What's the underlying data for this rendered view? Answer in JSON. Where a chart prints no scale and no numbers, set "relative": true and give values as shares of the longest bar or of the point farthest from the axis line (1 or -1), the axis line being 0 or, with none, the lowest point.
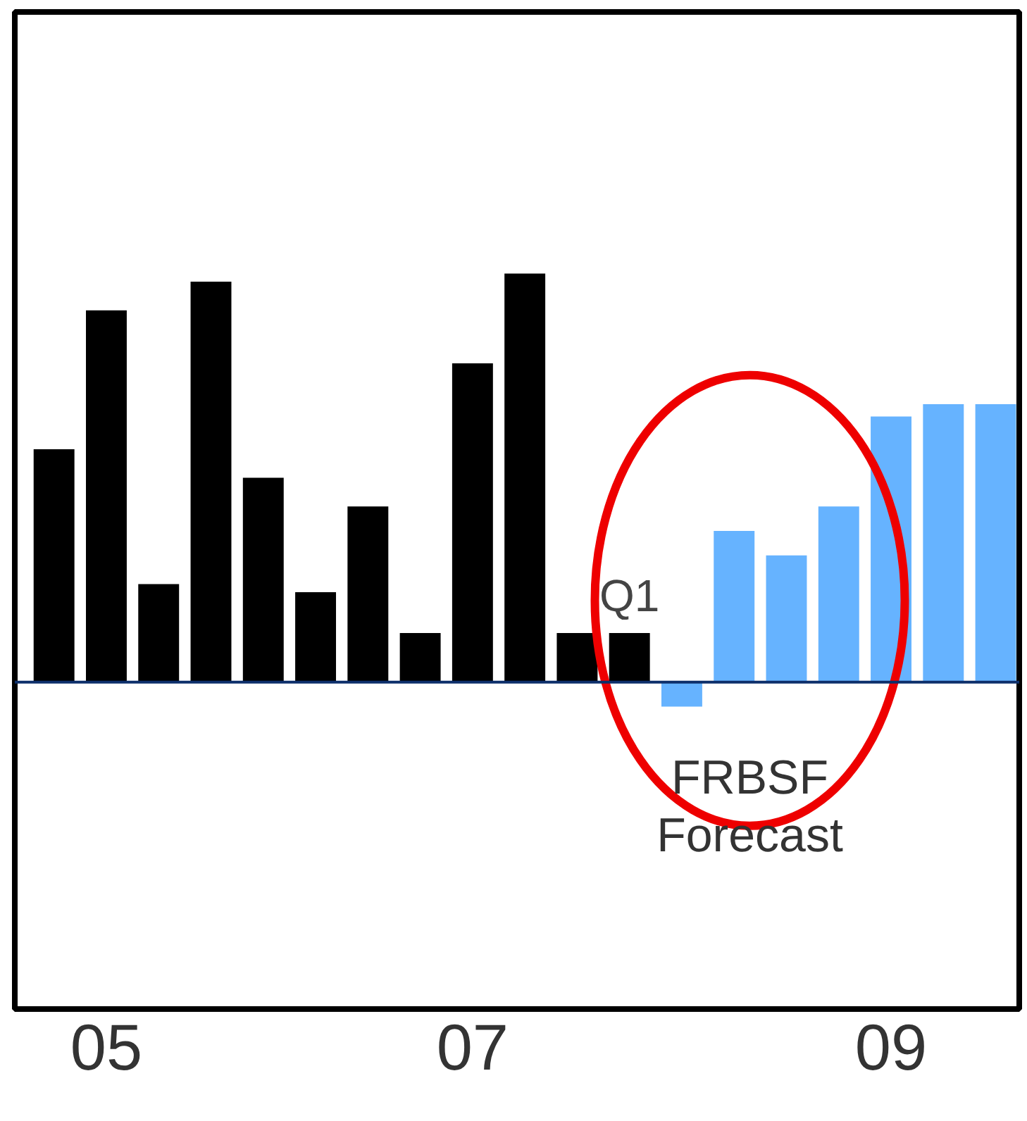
{
  "chart_data": {
    "type": "bar",
    "relative": true,
    "categories": [
      null,
      "05",
      null,
      null,
      null,
      null,
      null,
      null,
      "07",
      null,
      null,
      null,
      null,
      null,
      null,
      null,
      "09",
      null,
      null
    ],
    "values": [
      0.57,
      0.91,
      0.24,
      0.98,
      0.5,
      0.22,
      0.43,
      0.12,
      0.78,
      1,
      0.12,
      0.12,
      -0.06,
      0.37,
      0.31,
      0.43,
      0.65,
      0.68,
      0.68
    ],
    "colors": [
      "#000000",
      "#000000",
      "#000000",
      "#000000",
      "#000000",
      "#000000",
      "#000000",
      "#000000",
      "#000000",
      "#000000",
      "#000000",
      "#000000",
      "#66b3ff",
      "#66b3ff",
      "#66b3ff",
      "#66b3ff",
      "#66b3ff",
      "#66b3ff",
      "#66b3ff"
    ],
    "annotations": [
      "Q1",
      "FRBSF Forecast"
    ],
    "ref_lines": [
      {
        "axis": "y",
        "value": 0,
        "color": "#0d2f6b"
      }
    ]
  }
}
